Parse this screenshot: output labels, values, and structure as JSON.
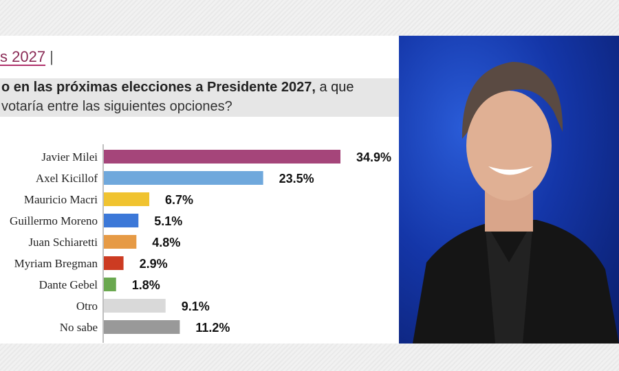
{
  "header": {
    "kicker": "s 2027",
    "separator": "|"
  },
  "question": {
    "bold": "o en las próximas elecciones a Presidente 2027,",
    "rest": " a que",
    "line2": "votaría entre las siguientes opciones?"
  },
  "chart_data": {
    "type": "bar",
    "orientation": "horizontal",
    "categories": [
      "Javier Milei",
      "Axel Kicillof",
      "Mauricio Macri",
      "Guillermo Moreno",
      "Juan Schiaretti",
      "Myriam Bregman",
      "Dante Gebel",
      "Otro",
      "No sabe"
    ],
    "values": [
      34.9,
      23.5,
      6.7,
      5.1,
      4.8,
      2.9,
      1.8,
      9.1,
      11.2
    ],
    "labels": [
      "34.9%",
      "23.5%",
      "6.7%",
      "5.1%",
      "4.8%",
      "2.9%",
      "1.8%",
      "9.1%",
      "11.2%"
    ],
    "colors": [
      "#a5457a",
      "#6fa8dc",
      "#f0c330",
      "#3c78d8",
      "#e69a45",
      "#cc3b22",
      "#6aa84f",
      "#d9d9d9",
      "#999999"
    ],
    "xlim": [
      0,
      36
    ],
    "title": "",
    "xlabel": "",
    "ylabel": ""
  },
  "photo": {
    "background": "#1436a8"
  }
}
